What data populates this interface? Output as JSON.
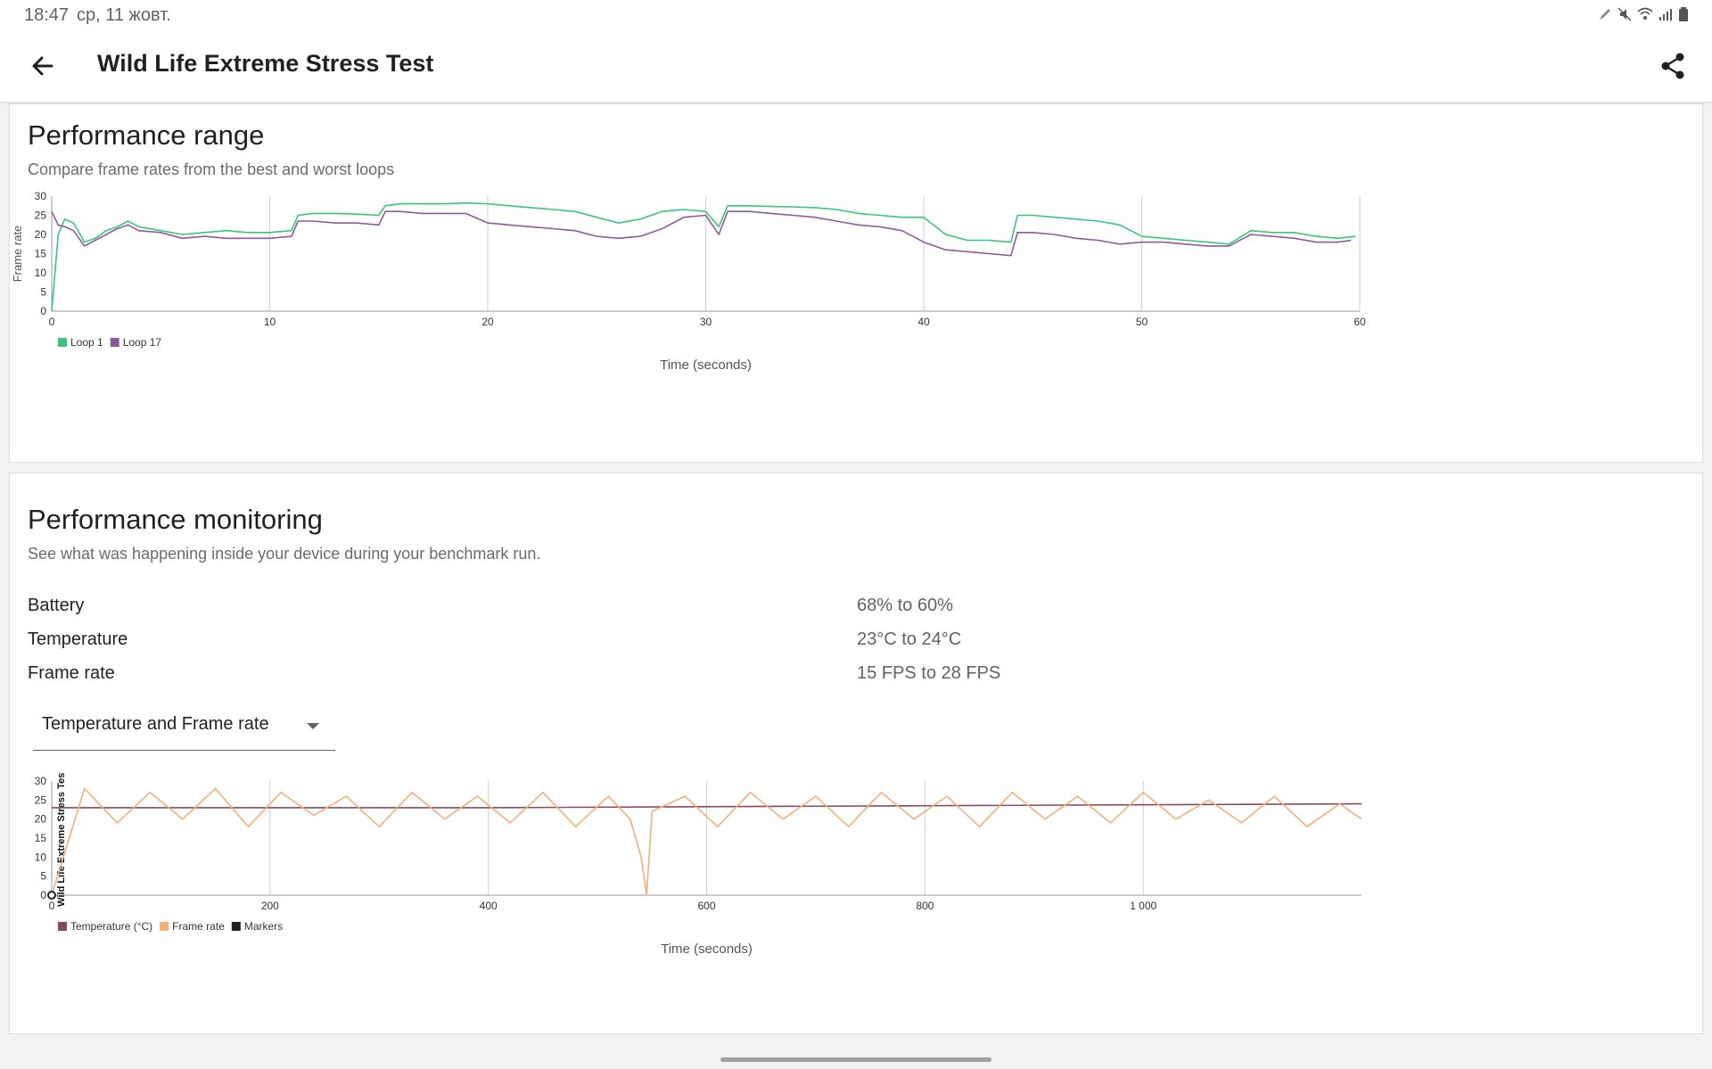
{
  "status_bar": {
    "time": "18:47",
    "date": "ср, 11 жовт."
  },
  "app_bar": {
    "title": "Wild Life Extreme Stress Test"
  },
  "performance_range": {
    "title": "Performance range",
    "subtitle": "Compare frame rates from the best and worst loops"
  },
  "performance_monitoring": {
    "title": "Performance monitoring",
    "subtitle": "See what was happening inside your device during your benchmark run.",
    "stats": [
      {
        "label": "Battery",
        "value": "68% to 60%"
      },
      {
        "label": "Temperature",
        "value": "23°C to 24°C"
      },
      {
        "label": "Frame rate",
        "value": "15 FPS to 28 FPS"
      }
    ],
    "dropdown": {
      "selected": "Temperature and Frame rate"
    }
  },
  "colors": {
    "loop1": "#3cc47a",
    "loop17": "#8e5a9b",
    "temperature": "#8b4a5c",
    "frame_rate": "#f0b07a",
    "markers": "#222222",
    "grid": "#cfcfcf"
  },
  "chart_data": [
    {
      "type": "line",
      "ylabel": "Frame rate",
      "xlabel": "Time (seconds)",
      "xlim": [
        0,
        60
      ],
      "ylim": [
        0,
        30
      ],
      "xticks": [
        "0",
        "10",
        "20",
        "30",
        "40",
        "50",
        "60"
      ],
      "yticks": [
        "0",
        "5",
        "10",
        "15",
        "20",
        "25",
        "30"
      ],
      "legend_position": "bottom-left",
      "series": [
        {
          "name": "Loop 1",
          "x": [
            0,
            0.3,
            0.6,
            1,
            1.5,
            2,
            2.5,
            3,
            3.5,
            4,
            5,
            6,
            7,
            8,
            9,
            10,
            11,
            11.3,
            12,
            13,
            14,
            15,
            15.3,
            16,
            17,
            18,
            19,
            20,
            21,
            22,
            23,
            24,
            25,
            26,
            27,
            28,
            29,
            30,
            30.6,
            31,
            32,
            33,
            34,
            35,
            36,
            37,
            38,
            39,
            40,
            41,
            42,
            43,
            44,
            44.3,
            45,
            46,
            47,
            48,
            49,
            50,
            51,
            52,
            53,
            54,
            55,
            56,
            57,
            58,
            59,
            59.8
          ],
          "y": [
            0,
            20,
            24,
            23,
            18,
            19,
            21,
            22,
            23.5,
            22,
            21,
            20,
            20.5,
            21,
            20.5,
            20.5,
            21,
            25,
            25.5,
            25.5,
            25.3,
            25,
            27.5,
            28,
            28,
            28,
            28.2,
            28,
            27.5,
            27,
            26.5,
            26,
            24.5,
            23,
            24,
            26,
            26.5,
            26,
            22,
            27.5,
            27.5,
            27.3,
            27.2,
            27,
            26.5,
            25.5,
            25,
            24.5,
            24.5,
            20,
            18.5,
            18.5,
            18,
            25,
            25,
            24.5,
            24,
            23.5,
            22.5,
            19.5,
            19,
            18.5,
            18,
            17.5,
            21,
            20.5,
            20.5,
            19.5,
            19,
            19.5
          ]
        },
        {
          "name": "Loop 17",
          "x": [
            0,
            0.3,
            0.6,
            1,
            1.5,
            2,
            2.5,
            3,
            3.5,
            4,
            5,
            6,
            7,
            8,
            9,
            10,
            11,
            11.3,
            12,
            13,
            14,
            15,
            15.3,
            16,
            17,
            18,
            19,
            20,
            21,
            22,
            23,
            24,
            25,
            26,
            27,
            28,
            29,
            30,
            30.6,
            31,
            32,
            33,
            34,
            35,
            36,
            37,
            38,
            39,
            40,
            41,
            42,
            43,
            44,
            44.3,
            45,
            46,
            47,
            48,
            49,
            50,
            51,
            52,
            53,
            54,
            55,
            56,
            57,
            58,
            59,
            59.6
          ],
          "y": [
            26,
            22.5,
            22,
            21,
            17,
            18.5,
            20,
            21.5,
            22.5,
            21,
            20.5,
            19,
            19.5,
            19,
            19,
            19,
            19.5,
            23.5,
            23.5,
            23,
            23,
            22.5,
            26,
            26,
            25.5,
            25.5,
            25.5,
            23,
            22.5,
            22,
            21.5,
            21,
            19.5,
            19,
            19.5,
            21.5,
            24.5,
            25,
            20,
            26,
            26,
            25.5,
            25,
            24.5,
            23.5,
            22.5,
            22,
            21,
            18,
            16,
            15.5,
            15,
            14.5,
            20.5,
            20.5,
            20,
            19,
            18.5,
            17.5,
            18,
            18,
            17.5,
            17,
            17,
            20,
            19.5,
            19,
            18,
            18,
            18.5
          ]
        }
      ]
    },
    {
      "type": "line",
      "ylabel": "Wild Life Extreme Stress Test",
      "xlabel": "Time (seconds)",
      "xlim": [
        0,
        1200
      ],
      "ylim": [
        0,
        30
      ],
      "xticks": [
        "0",
        "200",
        "400",
        "600",
        "800",
        "1 000"
      ],
      "yticks": [
        "0",
        "5",
        "10",
        "15",
        "20",
        "25",
        "30"
      ],
      "legend_position": "bottom-left",
      "series": [
        {
          "name": "Temperature (°C)",
          "x": [
            0,
            400,
            800,
            1200
          ],
          "y": [
            23,
            23,
            23.5,
            24
          ]
        },
        {
          "name": "Frame rate",
          "x": [
            0,
            30,
            60,
            90,
            120,
            150,
            180,
            210,
            240,
            270,
            300,
            330,
            360,
            390,
            420,
            450,
            480,
            510,
            530,
            540,
            545,
            550,
            580,
            610,
            640,
            670,
            700,
            730,
            760,
            790,
            820,
            850,
            880,
            910,
            940,
            970,
            1000,
            1030,
            1060,
            1090,
            1120,
            1150,
            1180,
            1200
          ],
          "y": [
            0,
            28,
            19,
            27,
            20,
            28,
            18,
            27,
            21,
            26,
            18,
            27,
            20,
            26,
            19,
            27,
            18,
            26,
            20,
            10,
            0,
            22,
            26,
            18,
            27,
            20,
            26,
            18,
            27,
            20,
            26,
            18,
            27,
            20,
            26,
            19,
            27,
            20,
            25,
            19,
            26,
            18,
            24,
            20
          ]
        },
        {
          "name": "Markers",
          "x": [
            0
          ],
          "y": [
            0
          ]
        }
      ]
    }
  ]
}
